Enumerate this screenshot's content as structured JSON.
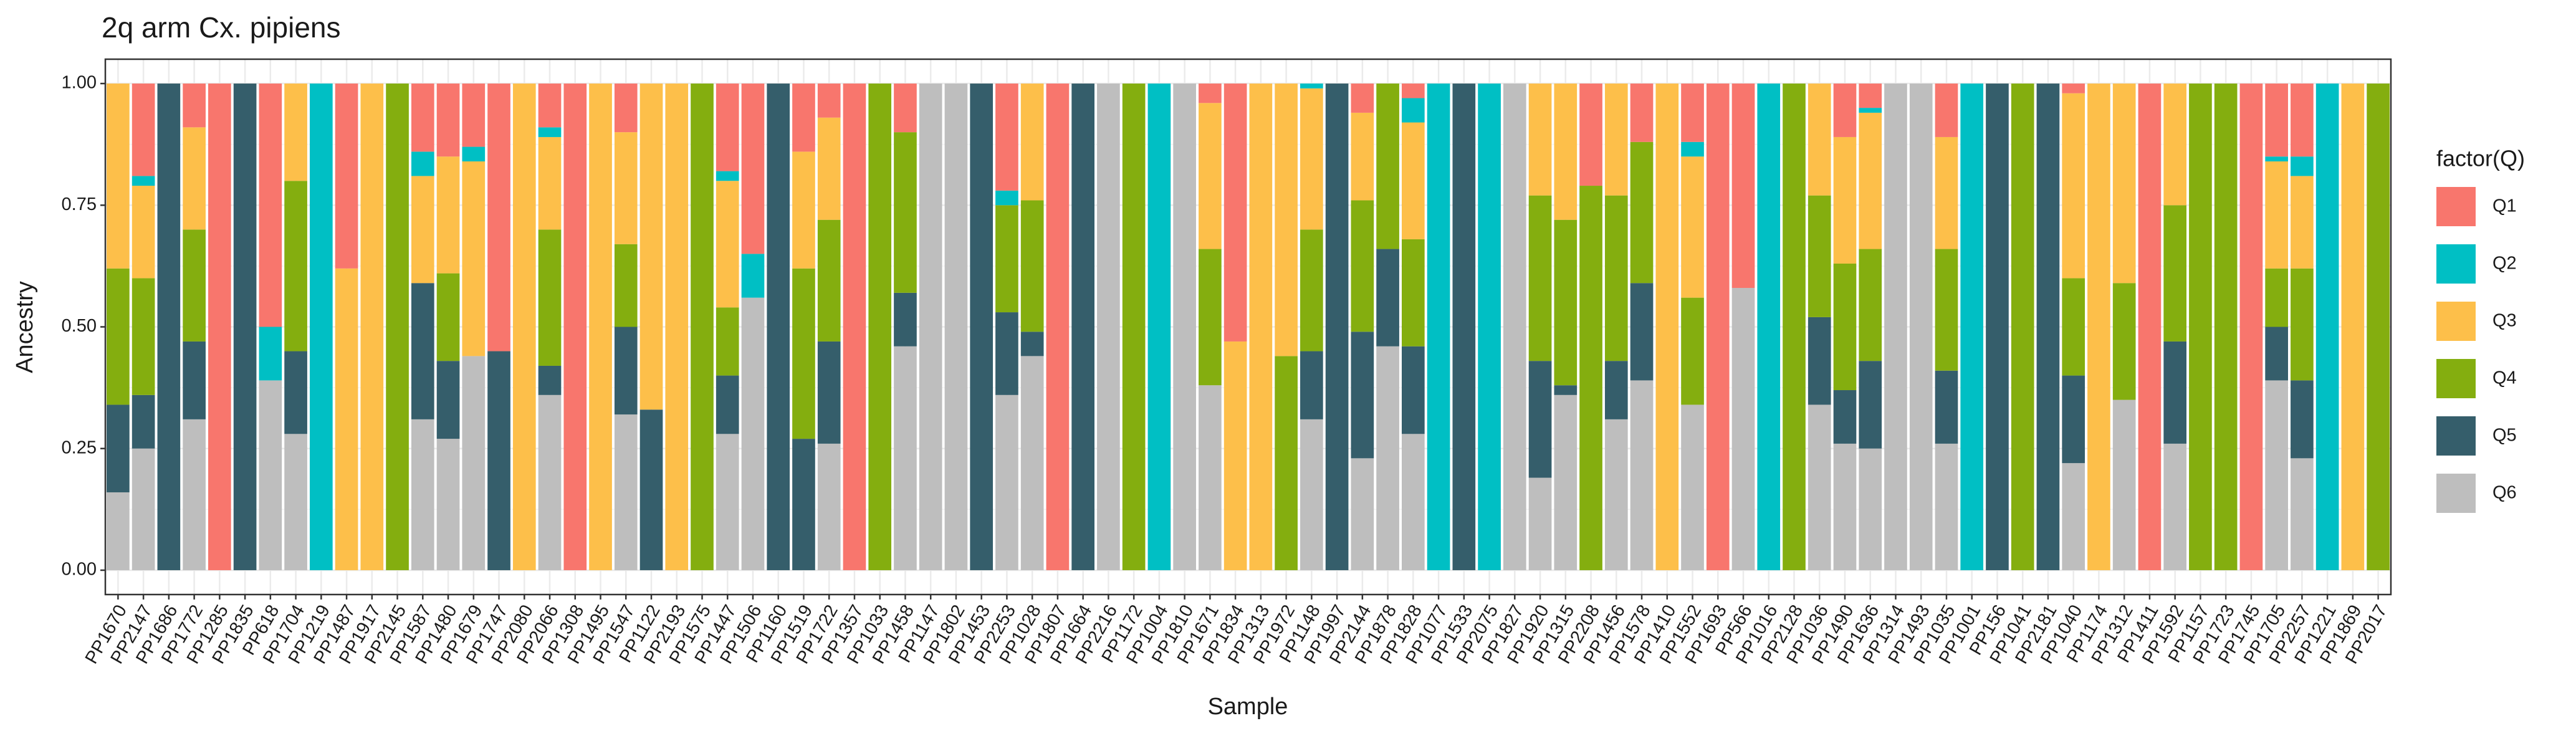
{
  "chart_data": {
    "type": "stacked_bar",
    "title": "2q arm Cx. pipiens",
    "x_label": "Sample",
    "y_label": "Ancestry",
    "legend_title": "factor(Q)",
    "legend_position": "right",
    "grid": true,
    "categories": [
      "PP1670",
      "PP2147",
      "PP1686",
      "PP1772",
      "PP1285",
      "PP1835",
      "PP618",
      "PP1704",
      "PP1219",
      "PP1487",
      "PP1917",
      "PP2145",
      "PP1587",
      "PP1480",
      "PP1679",
      "PP1747",
      "PP2080",
      "PP2066",
      "PP1308",
      "PP1495",
      "PP1547",
      "PP1122",
      "PP2193",
      "PP1575",
      "PP1447",
      "PP1506",
      "PP1160",
      "PP1519",
      "PP1722",
      "PP1357",
      "PP1033",
      "PP1458",
      "PP1147",
      "PP1802",
      "PP1453",
      "PP2253",
      "PP1028",
      "PP1807",
      "PP1664",
      "PP2216",
      "PP1172",
      "PP1004",
      "PP1810",
      "PP1671",
      "PP1834",
      "PP1313",
      "PP1972",
      "PP1148",
      "PP1997",
      "PP2144",
      "PP1878",
      "PP1828",
      "PP1077",
      "PP1533",
      "PP2075",
      "PP1827",
      "PP1920",
      "PP1315",
      "PP2208",
      "PP1456",
      "PP1578",
      "PP1410",
      "PP1552",
      "PP1693",
      "PP566",
      "PP1016",
      "PP2128",
      "PP1036",
      "PP1490",
      "PP1636",
      "PP1314",
      "PP1493",
      "PP1035",
      "PP1001",
      "PP156",
      "PP1041",
      "PP2181",
      "PP1040",
      "PP1174",
      "PP1312",
      "PP1411",
      "PP1592",
      "PP1157",
      "PP1723",
      "PP1745",
      "PP1705",
      "PP2257",
      "PP1221",
      "PP1869",
      "PP2017"
    ],
    "ylim": [
      -0.05,
      1.05
    ],
    "yticks": [
      {
        "value": 0,
        "label": "0.00"
      },
      {
        "value": 0.25,
        "label": "0.25"
      },
      {
        "value": 0.5,
        "label": "0.50"
      },
      {
        "value": 0.75,
        "label": "0.75"
      },
      {
        "value": 1,
        "label": "1.00"
      }
    ],
    "series": [
      {
        "name": "Q1",
        "color": "#F8766D",
        "values": [
          0,
          0.19,
          0,
          0.09,
          1,
          0,
          0.5,
          0,
          0,
          0.38,
          0,
          0,
          0.14,
          0.15,
          0.13,
          0.55,
          0,
          0.09,
          1,
          0,
          0.1,
          0,
          0,
          0,
          0.18,
          0.35,
          0,
          0.14,
          0.07,
          1,
          0,
          0.1,
          0,
          0,
          0,
          0.22,
          0,
          1,
          0,
          0,
          0,
          0,
          0,
          0.04,
          0.53,
          0,
          0,
          0,
          0,
          0.06,
          0,
          0.03,
          0,
          0,
          0,
          0,
          0,
          0,
          0.21,
          0,
          0.12,
          0,
          0.12,
          1,
          0.42,
          0,
          0,
          0,
          0.11,
          0.05,
          0,
          0,
          0.11,
          0,
          0,
          0,
          0,
          0.02,
          0,
          0,
          1,
          0,
          0,
          0,
          1,
          0.15,
          0.15,
          0,
          0,
          0
        ]
      },
      {
        "name": "Q2",
        "color": "#00BFC4",
        "values": [
          0,
          0.02,
          0,
          0,
          0,
          0,
          0.11,
          0,
          1,
          0,
          0,
          0,
          0.05,
          0,
          0.03,
          0,
          0,
          0.02,
          0,
          0,
          0,
          0,
          0,
          0,
          0.02,
          0.09,
          0,
          0,
          0,
          0,
          0,
          0,
          0,
          0,
          0,
          0.03,
          0,
          0,
          0,
          0,
          0,
          1,
          0,
          0,
          0,
          0,
          0,
          0.01,
          0,
          0,
          0,
          0.05,
          1,
          0,
          1,
          0,
          0,
          0,
          0,
          0,
          0,
          0,
          0.03,
          0,
          0,
          1,
          0,
          0,
          0,
          0.01,
          0,
          0,
          0,
          1,
          0,
          0,
          0,
          0,
          0,
          0,
          0,
          0,
          0,
          0,
          0,
          0.01,
          0.04,
          1,
          0,
          0
        ]
      },
      {
        "name": "Q3",
        "color": "#FDBF4A",
        "values": [
          0.38,
          0.19,
          0,
          0.21,
          0,
          0,
          0,
          0.2,
          0,
          0.62,
          1,
          0,
          0.22,
          0.24,
          0.4,
          0,
          1,
          0.19,
          0,
          1,
          0.23,
          0.67,
          1,
          0,
          0.26,
          0,
          0,
          0.24,
          0.21,
          0,
          0,
          0,
          0,
          0,
          0,
          0,
          0.24,
          0,
          0,
          0,
          0,
          0,
          0,
          0.3,
          0.47,
          1,
          0.56,
          0.29,
          0,
          0.18,
          0,
          0.24,
          0,
          0,
          0,
          0,
          0.23,
          0.28,
          0,
          0.23,
          0,
          1,
          0.29,
          0,
          0,
          0,
          0,
          0.23,
          0.26,
          0.28,
          0,
          0,
          0.23,
          0,
          0,
          0,
          0,
          0.38,
          1,
          0.41,
          0,
          0.25,
          0,
          0,
          0,
          0.22,
          0.19,
          0,
          1,
          0
        ]
      },
      {
        "name": "Q4",
        "color": "#84AE0F",
        "values": [
          0.28,
          0.24,
          0,
          0.23,
          0,
          0,
          0,
          0.35,
          0,
          0,
          0,
          1,
          0,
          0.18,
          0,
          0,
          0,
          0.28,
          0,
          0,
          0.17,
          0,
          0,
          1,
          0.14,
          0,
          0,
          0.35,
          0.25,
          0,
          1,
          0.33,
          0,
          0,
          0,
          0.22,
          0.27,
          0,
          0,
          0,
          1,
          0,
          0,
          0.28,
          0,
          0,
          0.44,
          0.25,
          0,
          0.27,
          0.34,
          0.22,
          0,
          0,
          0,
          0,
          0.34,
          0.34,
          0.79,
          0.34,
          0.29,
          0,
          0.22,
          0,
          0,
          0,
          1,
          0.25,
          0.26,
          0.23,
          0,
          0,
          0.25,
          0,
          0,
          1,
          0,
          0.2,
          0,
          0.24,
          0,
          0.28,
          1,
          1,
          0,
          0.12,
          0.23,
          0,
          0,
          1
        ]
      },
      {
        "name": "Q5",
        "color": "#355E6B",
        "values": [
          0.18,
          0.11,
          1,
          0.16,
          0,
          1,
          0,
          0.17,
          0,
          0,
          0,
          0,
          0.28,
          0.16,
          0,
          0.45,
          0,
          0.06,
          0,
          0,
          0.18,
          0.33,
          0,
          0,
          0.12,
          0,
          1,
          0.27,
          0.21,
          0,
          0,
          0.11,
          0,
          0,
          1,
          0.17,
          0.05,
          0,
          1,
          0,
          0,
          0,
          0,
          0,
          0,
          0,
          0,
          0.14,
          1,
          0.26,
          0.2,
          0.18,
          0,
          1,
          0,
          0,
          0.24,
          0.02,
          0,
          0.12,
          0.2,
          0,
          0,
          0,
          0,
          0,
          0,
          0.18,
          0.11,
          0.18,
          0,
          0,
          0.15,
          0,
          1,
          0,
          1,
          0.18,
          0,
          0,
          0,
          0.21,
          0,
          0,
          0,
          0.11,
          0.16,
          0,
          0,
          0
        ]
      },
      {
        "name": "Q6",
        "color": "#BEBEBE",
        "values": [
          0.16,
          0.25,
          0,
          0.31,
          0,
          0,
          0.39,
          0.28,
          0,
          0,
          0,
          0,
          0.31,
          0.27,
          0.44,
          0,
          0,
          0.36,
          0,
          0,
          0.32,
          0,
          0,
          0,
          0.28,
          0.56,
          0,
          0,
          0.26,
          0,
          0,
          0.46,
          1,
          1,
          0,
          0.36,
          0.44,
          0,
          0,
          1,
          0,
          0,
          1,
          0.38,
          0,
          0,
          0,
          0.31,
          0,
          0.23,
          0.46,
          0.28,
          0,
          0,
          0,
          1,
          0.19,
          0.36,
          0,
          0.31,
          0.39,
          0,
          0.34,
          0,
          0.58,
          0,
          0,
          0.34,
          0.26,
          0.25,
          1,
          1,
          0.26,
          0,
          0,
          0,
          0,
          0.22,
          0,
          0.35,
          0,
          0.26,
          0,
          0,
          0,
          0.39,
          0.23,
          0,
          0,
          0
        ]
      }
    ]
  }
}
